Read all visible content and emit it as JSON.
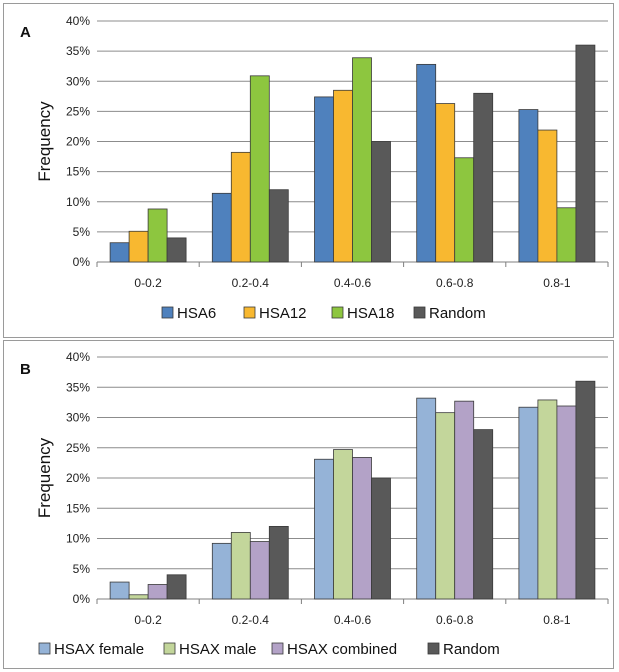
{
  "charts": [
    {
      "panel_label": "A",
      "type": "bar",
      "categories": [
        "0-0.2",
        "0.2-0.4",
        "0.4-0.6",
        "0.6-0.8",
        "0.8-1"
      ],
      "ylabel": "Frequency",
      "ylim": [
        0,
        40
      ],
      "yticks": [
        "0%",
        "5%",
        "10%",
        "15%",
        "20%",
        "25%",
        "30%",
        "35%",
        "40%"
      ],
      "grid": "horizontal",
      "legend": "bottom",
      "series": [
        {
          "name": "HSA6",
          "color": "#4f81bd",
          "values": [
            3.2,
            11.4,
            27.4,
            32.8,
            25.3
          ]
        },
        {
          "name": "HSA12",
          "color": "#f8b830",
          "values": [
            5.1,
            18.2,
            28.5,
            26.3,
            21.9
          ]
        },
        {
          "name": "HSA18",
          "color": "#8dc63f",
          "values": [
            8.8,
            30.9,
            33.9,
            17.3,
            9.0
          ]
        },
        {
          "name": "Random",
          "color": "#595959",
          "values": [
            4.0,
            12.0,
            20.0,
            28.0,
            36.0
          ]
        }
      ]
    },
    {
      "panel_label": "B",
      "type": "bar",
      "categories": [
        "0-0.2",
        "0.2-0.4",
        "0.4-0.6",
        "0.6-0.8",
        "0.8-1"
      ],
      "ylabel": "Frequency",
      "ylim": [
        0,
        40
      ],
      "yticks": [
        "0%",
        "5%",
        "10%",
        "15%",
        "20%",
        "25%",
        "30%",
        "35%",
        "40%"
      ],
      "grid": "horizontal",
      "legend": "bottom",
      "series": [
        {
          "name": "HSAX female",
          "color": "#95b3d7",
          "values": [
            2.8,
            9.2,
            23.1,
            33.2,
            31.7
          ]
        },
        {
          "name": "HSAX male",
          "color": "#c3d69b",
          "values": [
            0.7,
            11.0,
            24.7,
            30.8,
            32.9
          ]
        },
        {
          "name": "HSAX combined",
          "color": "#b3a2c7",
          "values": [
            2.4,
            9.5,
            23.4,
            32.7,
            31.9
          ]
        },
        {
          "name": "Random",
          "color": "#595959",
          "values": [
            4.0,
            12.0,
            20.0,
            28.0,
            36.0
          ]
        }
      ]
    }
  ]
}
